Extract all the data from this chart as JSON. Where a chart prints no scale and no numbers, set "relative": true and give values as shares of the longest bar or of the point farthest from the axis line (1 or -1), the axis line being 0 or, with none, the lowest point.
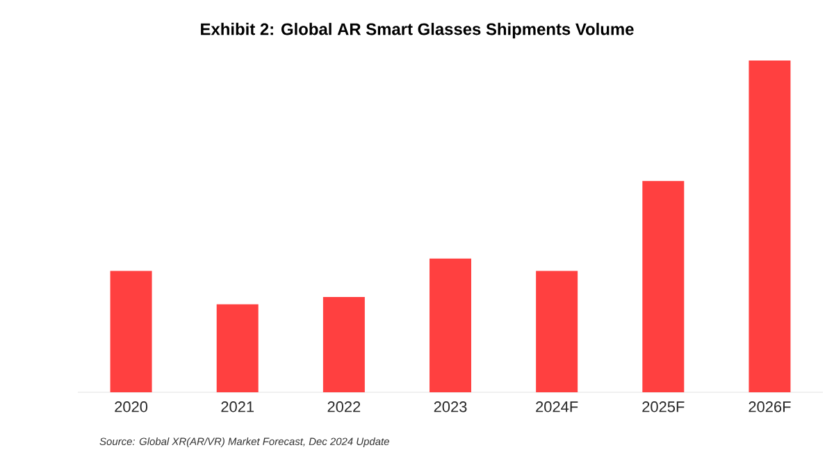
{
  "chart_data": {
    "type": "bar",
    "title": "Exhibit 2: Global AR Smart Glasses Shipments Volume",
    "categories": [
      "2020",
      "2021",
      "2022",
      "2023",
      "2024F",
      "2025F",
      "2026F"
    ],
    "values": [
      0.366,
      0.265,
      0.287,
      0.403,
      0.366,
      0.637,
      1.0
    ],
    "color": "#ff4040",
    "relative": true,
    "annotations": [
      "Source: Global XR(AR/VR) Market Forecast, Dec 2024 Update"
    ]
  }
}
